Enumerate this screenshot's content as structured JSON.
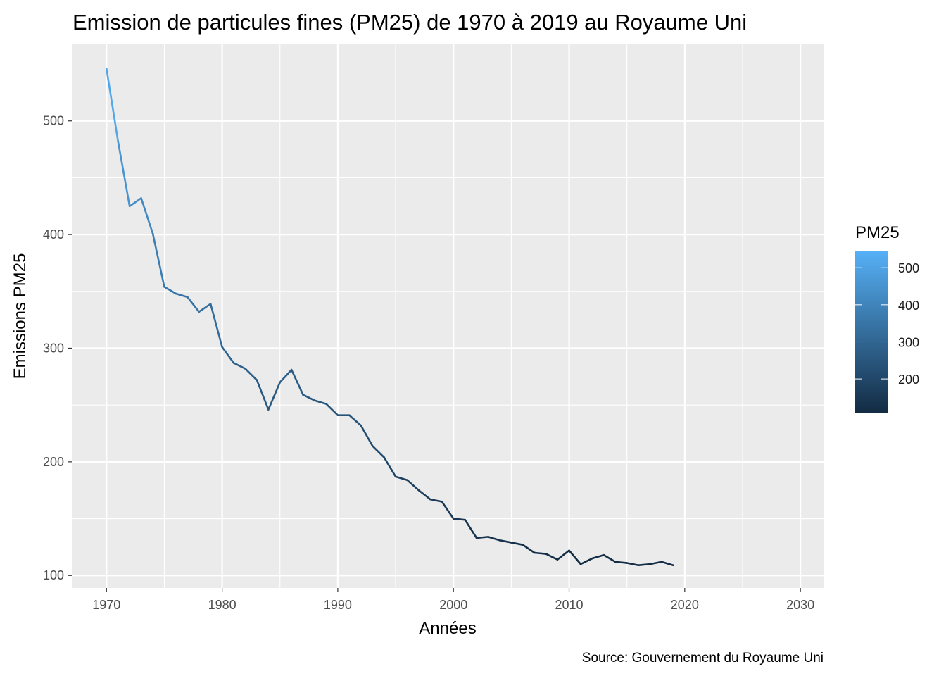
{
  "chart_data": {
    "type": "line",
    "title": "Emission de particules fines (PM25) de 1970 à 2019 au Royaume Uni",
    "xlabel": "Années",
    "ylabel": "Emissions PM25",
    "caption": "Source: Gouvernement du Royaume Uni",
    "xlim": [
      1967,
      2032
    ],
    "ylim": [
      89,
      568
    ],
    "x_ticks": [
      1970,
      1980,
      1990,
      2000,
      2010,
      2020,
      2030
    ],
    "y_ticks": [
      100,
      200,
      300,
      400,
      500
    ],
    "grid": true,
    "legend": {
      "title": "PM25",
      "position": "right",
      "ticks": [
        200,
        300,
        400,
        500
      ],
      "range": [
        109,
        546
      ],
      "color_low": "#132B43",
      "color_high": "#56B1F7"
    },
    "series": [
      {
        "name": "PM25",
        "x": [
          1970,
          1971,
          1972,
          1973,
          1974,
          1975,
          1976,
          1977,
          1978,
          1979,
          1980,
          1981,
          1982,
          1983,
          1984,
          1985,
          1986,
          1987,
          1988,
          1989,
          1990,
          1991,
          1992,
          1993,
          1994,
          1995,
          1996,
          1997,
          1998,
          1999,
          2000,
          2001,
          2002,
          2003,
          2004,
          2005,
          2006,
          2007,
          2008,
          2009,
          2010,
          2011,
          2012,
          2013,
          2014,
          2015,
          2016,
          2017,
          2018,
          2019
        ],
        "values": [
          546,
          482,
          425,
          432,
          401,
          354,
          348,
          345,
          332,
          339,
          301,
          287,
          282,
          272,
          246,
          270,
          281,
          259,
          254,
          251,
          241,
          241,
          232,
          214,
          204,
          187,
          184,
          175,
          167,
          165,
          150,
          149,
          133,
          134,
          131,
          129,
          127,
          120,
          119,
          114,
          122,
          110,
          115,
          118,
          112,
          111,
          109,
          110,
          112,
          109
        ]
      }
    ]
  },
  "colors": {
    "panel": "#EBEBEB",
    "grid": "#FFFFFF",
    "tick": "#333333"
  }
}
